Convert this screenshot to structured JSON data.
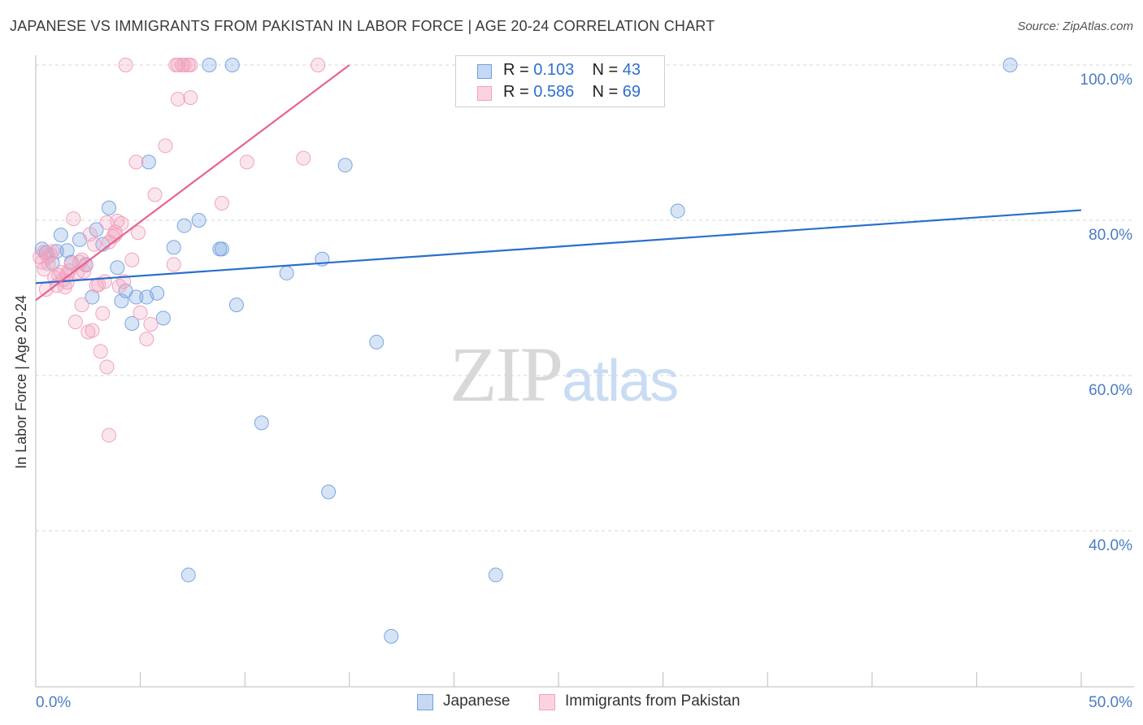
{
  "header": {
    "title": "JAPANESE VS IMMIGRANTS FROM PAKISTAN IN LABOR FORCE | AGE 20-24 CORRELATION CHART",
    "source": "Source: ZipAtlas.com"
  },
  "watermark": {
    "zip": "ZIP",
    "atlas": "atlas"
  },
  "legend": {
    "rows": [
      {
        "r_label": "R =",
        "r_value": "0.103",
        "n_label": "N =",
        "n_value": "43"
      },
      {
        "r_label": "R =",
        "r_value": "0.586",
        "n_label": "N =",
        "n_value": "69"
      }
    ]
  },
  "bottom_legend": {
    "series1": "Japanese",
    "series2": "Immigrants from Pakistan"
  },
  "chart_data": {
    "type": "scatter",
    "title": "JAPANESE VS IMMIGRANTS FROM PAKISTAN IN LABOR FORCE | AGE 20-24 CORRELATION CHART",
    "xlabel": "",
    "ylabel": "In Labor Force | Age 20-24",
    "xlim": [
      0,
      50
    ],
    "ylim": [
      20,
      102
    ],
    "x_tick_labels": [
      {
        "value": 0,
        "label": "0.0%"
      },
      {
        "value": 50,
        "label": "50.0%"
      }
    ],
    "x_minor_ticks": [
      0,
      5,
      10,
      15,
      20,
      25,
      30,
      35,
      40,
      45,
      50
    ],
    "y_ticks": [
      {
        "value": 100,
        "label": "100.0%"
      },
      {
        "value": 80,
        "label": "80.0%"
      },
      {
        "value": 60,
        "label": "60.0%"
      },
      {
        "value": 40,
        "label": "40.0%"
      }
    ],
    "grid": true,
    "colors": {
      "japanese": "#6f9fe0",
      "pakistan": "#f2a2bd",
      "japanese_line": "#2a6fcd",
      "pakistan_line": "#e8628f",
      "tick_text": "#4a7dc4"
    },
    "series": [
      {
        "name": "Japanese",
        "points": [
          [
            0.3,
            76.3
          ],
          [
            0.5,
            75.8
          ],
          [
            0.8,
            74.5
          ],
          [
            1.0,
            76.0
          ],
          [
            1.2,
            78.1
          ],
          [
            1.5,
            76.1
          ],
          [
            1.7,
            74.6
          ],
          [
            2.1,
            77.5
          ],
          [
            2.4,
            74.3
          ],
          [
            2.7,
            70.1
          ],
          [
            2.9,
            78.8
          ],
          [
            3.2,
            76.9
          ],
          [
            3.5,
            81.6
          ],
          [
            3.9,
            73.9
          ],
          [
            4.1,
            69.6
          ],
          [
            4.3,
            70.9
          ],
          [
            4.6,
            66.7
          ],
          [
            4.8,
            70.1
          ],
          [
            5.3,
            70.1
          ],
          [
            5.4,
            87.5
          ],
          [
            5.8,
            70.6
          ],
          [
            6.1,
            67.4
          ],
          [
            6.6,
            76.5
          ],
          [
            7.1,
            79.3
          ],
          [
            7.3,
            34.3
          ],
          [
            7.8,
            80.0
          ],
          [
            8.3,
            100.0
          ],
          [
            8.8,
            76.3
          ],
          [
            8.9,
            76.3
          ],
          [
            9.4,
            100.0
          ],
          [
            9.6,
            69.1
          ],
          [
            10.8,
            53.9
          ],
          [
            12.0,
            73.2
          ],
          [
            13.7,
            75.0
          ],
          [
            14.0,
            45.0
          ],
          [
            14.8,
            87.1
          ],
          [
            16.3,
            64.3
          ],
          [
            17.0,
            26.4
          ],
          [
            20.5,
            100.0
          ],
          [
            22.0,
            34.3
          ],
          [
            23.0,
            100.0
          ],
          [
            30.7,
            81.2
          ],
          [
            46.6,
            100.0
          ]
        ]
      },
      {
        "name": "Immigrants from Pakistan",
        "points": [
          [
            0.2,
            75.3
          ],
          [
            0.3,
            74.6
          ],
          [
            0.4,
            73.7
          ],
          [
            0.5,
            71.1
          ],
          [
            0.6,
            74.4
          ],
          [
            0.7,
            75.6
          ],
          [
            0.8,
            76.0
          ],
          [
            0.9,
            72.6
          ],
          [
            1.0,
            71.6
          ],
          [
            1.1,
            72.9
          ],
          [
            1.2,
            73.3
          ],
          [
            1.3,
            72.3
          ],
          [
            1.4,
            71.4
          ],
          [
            1.5,
            72.0
          ],
          [
            1.6,
            73.5
          ],
          [
            1.7,
            74.4
          ],
          [
            1.8,
            80.2
          ],
          [
            1.9,
            66.9
          ],
          [
            2.0,
            73.3
          ],
          [
            2.1,
            74.6
          ],
          [
            2.2,
            69.1
          ],
          [
            2.3,
            73.4
          ],
          [
            2.4,
            74.2
          ],
          [
            2.5,
            65.6
          ],
          [
            2.6,
            78.2
          ],
          [
            2.7,
            65.8
          ],
          [
            2.8,
            76.9
          ],
          [
            2.9,
            71.6
          ],
          [
            3.0,
            71.7
          ],
          [
            3.1,
            63.1
          ],
          [
            3.2,
            68.0
          ],
          [
            3.3,
            72.1
          ],
          [
            3.4,
            79.7
          ],
          [
            3.4,
            61.1
          ],
          [
            3.5,
            77.2
          ],
          [
            3.5,
            52.3
          ],
          [
            3.7,
            77.9
          ],
          [
            3.8,
            78.1
          ],
          [
            3.9,
            79.9
          ],
          [
            4.0,
            71.5
          ],
          [
            4.1,
            79.6
          ],
          [
            4.2,
            72.1
          ],
          [
            4.6,
            74.9
          ],
          [
            4.8,
            87.5
          ],
          [
            4.9,
            78.4
          ],
          [
            5.0,
            68.1
          ],
          [
            5.3,
            64.7
          ],
          [
            5.5,
            66.6
          ],
          [
            5.7,
            83.3
          ],
          [
            6.2,
            89.6
          ],
          [
            6.6,
            74.3
          ],
          [
            6.8,
            95.6
          ],
          [
            7.4,
            95.8
          ],
          [
            8.9,
            82.2
          ],
          [
            10.1,
            87.5
          ],
          [
            12.8,
            88.0
          ],
          [
            3.8,
            78.5
          ],
          [
            2.2,
            74.9
          ],
          [
            1.5,
            73.0
          ],
          [
            4.3,
            100.0
          ],
          [
            6.7,
            100.0
          ],
          [
            6.8,
            100.0
          ],
          [
            7.0,
            100.0
          ],
          [
            7.1,
            100.0
          ],
          [
            7.3,
            100.0
          ],
          [
            7.4,
            100.0
          ],
          [
            13.5,
            100.0
          ],
          [
            0.4,
            75.9
          ],
          [
            0.6,
            75.3
          ]
        ]
      }
    ],
    "trendlines": [
      {
        "name": "Japanese",
        "from": [
          0,
          71.9
        ],
        "to": [
          50,
          81.3
        ]
      },
      {
        "name": "Immigrants from Pakistan",
        "from": [
          0,
          69.7
        ],
        "to": [
          15,
          100.0
        ]
      }
    ]
  }
}
